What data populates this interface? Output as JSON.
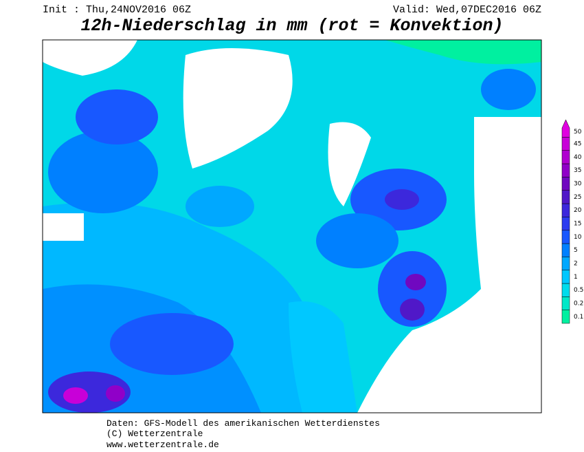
{
  "header": {
    "init": "Init : Thu,24NOV2016 06Z",
    "valid": "Valid: Wed,07DEC2016 06Z",
    "title": "12h-Niederschlag in mm (rot = Konvektion)"
  },
  "legend": {
    "values": [
      0.1,
      0.2,
      0.5,
      1,
      2,
      5,
      10,
      15,
      20,
      25,
      30,
      35,
      40,
      45,
      50
    ],
    "colors": [
      "#00f0a0",
      "#00e8c8",
      "#00dcec",
      "#00c8ff",
      "#00a8ff",
      "#0080ff",
      "#1858ff",
      "#2c3cf0",
      "#3c28dc",
      "#5018c8",
      "#7008c0",
      "#9000c8",
      "#b000d0",
      "#c800d8",
      "#e000e0"
    ]
  },
  "footer": {
    "line1": "Daten: GFS-Modell des amerikanischen Wetterdienstes",
    "line2": "(C) Wetterzentrale",
    "line3": "www.wetterzentrale.de"
  }
}
